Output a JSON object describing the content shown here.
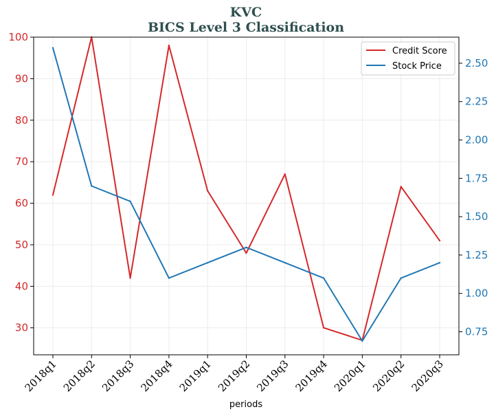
{
  "chart_data": {
    "type": "line",
    "title": "KVC",
    "subtitle": "BICS Level 3 Classification",
    "xlabel": "periods",
    "categories": [
      "2018q1",
      "2018q2",
      "2018q3",
      "2018q4",
      "2019q1",
      "2019q2",
      "2019q3",
      "2019q4",
      "2020q1",
      "2020q2",
      "2020q3"
    ],
    "series": [
      {
        "name": "Credit Score",
        "axis": "left",
        "color": "#d62728",
        "values": [
          62,
          100,
          42,
          98,
          63,
          48,
          67,
          30,
          27,
          64,
          51
        ]
      },
      {
        "name": "Stock Price",
        "axis": "right",
        "color": "#1f77b4",
        "values": [
          2.6,
          1.7,
          1.6,
          1.1,
          1.2,
          1.3,
          1.2,
          1.1,
          0.69,
          1.1,
          1.2
        ]
      }
    ],
    "y_left": {
      "ylim": [
        23.5,
        100
      ],
      "ticks": [
        30,
        40,
        50,
        60,
        70,
        80,
        90,
        100
      ],
      "color": "#d62728"
    },
    "y_right": {
      "ylim": [
        0.6,
        2.67
      ],
      "ticks": [
        "0.75",
        "1.00",
        "1.25",
        "1.50",
        "1.75",
        "2.00",
        "2.25",
        "2.50"
      ],
      "color": "#1f77b4"
    },
    "grid": true,
    "legend": "top-right"
  }
}
